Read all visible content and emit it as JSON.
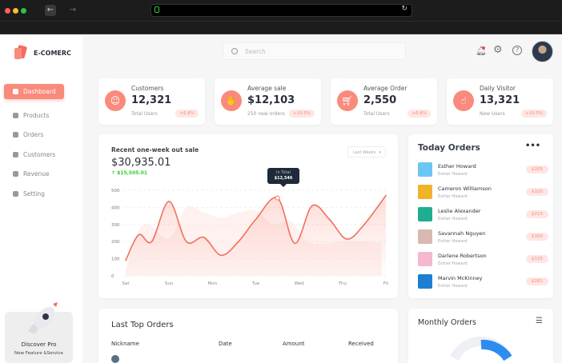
{
  "browser": {
    "back_icon": "arrow-left-icon",
    "forward_icon": "arrow-right-icon",
    "lock_icon": "lock-icon",
    "reload_icon": "reload-icon"
  },
  "brand": {
    "name": "E-COMERC"
  },
  "sidebar": {
    "items": [
      {
        "label": "Dashboard",
        "active": true
      },
      {
        "label": "Products"
      },
      {
        "label": "Orders"
      },
      {
        "label": "Customers"
      },
      {
        "label": "Revenue"
      },
      {
        "label": "Setting"
      }
    ]
  },
  "promo": {
    "title": "Discover Pro",
    "subtitle": "New Feature &Service"
  },
  "search": {
    "placeholder": "Search"
  },
  "stats": [
    {
      "title": "Customers",
      "value": "12,321",
      "sub": "Total Users",
      "badge": "+6.8%",
      "icon": "user-icon"
    },
    {
      "title": "Average sale",
      "value": "$12,103",
      "sub": "250 new orders",
      "badge": "+10.5%",
      "icon": "hand-coin-icon"
    },
    {
      "title": "Average Order",
      "value": "2,550",
      "sub": "Total Users",
      "badge": "+6.8%",
      "icon": "cart-icon"
    },
    {
      "title": "Daily Visitor",
      "value": "13,321",
      "sub": "New Users",
      "badge": "+10.5%",
      "icon": "pointer-icon"
    }
  ],
  "sales": {
    "title": "Recent one-week  out sale",
    "total": "$30,935.01",
    "delta": "$15,505.01",
    "filter": "Last Weeks",
    "tooltip_label": "In Total",
    "tooltip_value": "$12,546"
  },
  "chart_data": {
    "type": "area",
    "x_labels": [
      "Sat",
      "Sun",
      "Mon",
      "Tue",
      "Wed",
      "Thu",
      "Fri"
    ],
    "y_ticks": [
      0,
      100,
      200,
      300,
      400,
      500
    ],
    "ylim": [
      0,
      500
    ],
    "grid": true,
    "series": [
      {
        "x": [
          0,
          0.3,
          0.6,
          1,
          1.4,
          1.8,
          2.2,
          2.6,
          3,
          3.5,
          3.9,
          4.3,
          4.7,
          5.1,
          5.5,
          6
        ],
        "values": [
          90,
          240,
          200,
          435,
          200,
          225,
          120,
          200,
          330,
          455,
          190,
          410,
          330,
          215,
          300,
          470
        ]
      },
      {
        "x": [
          0,
          0.4,
          1,
          1.4,
          1.8,
          2.2,
          2.6,
          3,
          3.4,
          3.8,
          4.2,
          4.6,
          5,
          5.5,
          5.9
        ],
        "values": [
          30,
          300,
          220,
          400,
          370,
          340,
          370,
          380,
          300,
          320,
          200,
          190,
          200,
          200,
          190
        ]
      }
    ]
  },
  "today_orders": {
    "title": "Today Orders",
    "more_icon": "more-horizontal-icon",
    "items": [
      {
        "name": "Esther Howard",
        "sub": "Esther Howard",
        "price": "$205",
        "color": "#6cc6f5"
      },
      {
        "name": "Cameron Williamson",
        "sub": "Esther Howard",
        "price": "$100",
        "color": "#f0b429"
      },
      {
        "name": "Leslie Alexander",
        "sub": "Esther Howard",
        "price": "$215",
        "color": "#1fae8f"
      },
      {
        "name": "Savannah Nguyen",
        "sub": "Esther Howard",
        "price": "$300",
        "color": "#d8b8b0"
      },
      {
        "name": "Darlene Robertson",
        "sub": "Esther Howard",
        "price": "$125",
        "color": "#f5b8d0"
      },
      {
        "name": "Marvin McKinney",
        "sub": "Esther Howard",
        "price": "$262",
        "color": "#1c7fd0"
      }
    ]
  },
  "last_orders": {
    "title": "Last Top Orders",
    "columns": [
      "Nickname",
      "Date",
      "Amount",
      "Received"
    ]
  },
  "monthly": {
    "title": "Monthly Orders",
    "accent": "#2d8cf0"
  }
}
